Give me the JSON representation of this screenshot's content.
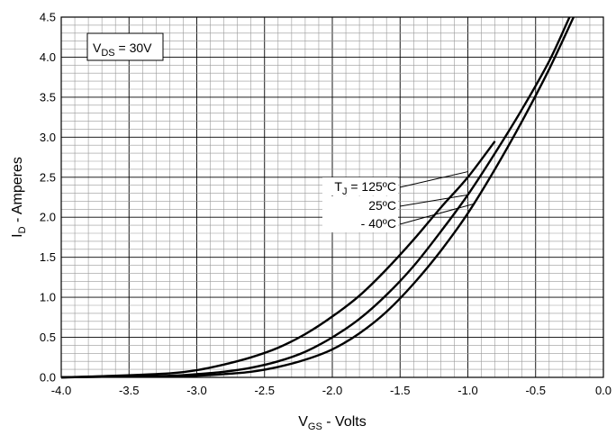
{
  "chart_data": {
    "type": "line",
    "title": "",
    "xlabel": {
      "main": "V",
      "sub": "GS",
      "rest": " - Volts"
    },
    "ylabel": {
      "main": "I",
      "sub": "D",
      "rest": " - Amperes"
    },
    "xlim": [
      -4.0,
      0.0
    ],
    "ylim": [
      0.0,
      4.5
    ],
    "grid": true,
    "x_ticks": [
      "-4.0",
      "-3.5",
      "-3.0",
      "-2.5",
      "-2.0",
      "-1.5",
      "-1.0",
      "-0.5",
      "0.0"
    ],
    "y_ticks": [
      "0.0",
      "0.5",
      "1.0",
      "1.5",
      "2.0",
      "2.5",
      "3.0",
      "3.5",
      "4.0",
      "4.5"
    ],
    "condition_box": {
      "main": "V",
      "sub": "DS",
      "rest": " = 30V"
    },
    "series": [
      {
        "name": "T_J = 125ºC",
        "label": {
          "main": "T",
          "sub": "J",
          "rest": " = 125ºC"
        },
        "x": [
          -4.0,
          -3.6,
          -3.2,
          -3.0,
          -2.8,
          -2.6,
          -2.4,
          -2.2,
          -2.0,
          -1.8,
          -1.6,
          -1.4,
          -1.2,
          -1.0,
          -0.8
        ],
        "y": [
          0.0,
          0.02,
          0.05,
          0.09,
          0.16,
          0.25,
          0.37,
          0.54,
          0.76,
          1.02,
          1.35,
          1.72,
          2.12,
          2.5,
          2.95
        ]
      },
      {
        "name": "25ºC",
        "label": {
          "main": "25ºC",
          "sub": "",
          "rest": ""
        },
        "x": [
          -4.0,
          -3.6,
          -3.2,
          -3.0,
          -2.8,
          -2.6,
          -2.4,
          -2.2,
          -2.0,
          -1.8,
          -1.6,
          -1.4,
          -1.2,
          -1.0,
          -0.8,
          -0.6,
          -0.4,
          -0.25
        ],
        "y": [
          0.0,
          0.01,
          0.02,
          0.04,
          0.07,
          0.12,
          0.2,
          0.32,
          0.5,
          0.73,
          1.03,
          1.39,
          1.82,
          2.28,
          2.8,
          3.35,
          3.95,
          4.5
        ]
      },
      {
        "name": "- 40ºC",
        "label": {
          "main": "- 40ºC",
          "sub": "",
          "rest": ""
        },
        "x": [
          -4.0,
          -3.6,
          -3.2,
          -3.0,
          -2.8,
          -2.6,
          -2.4,
          -2.2,
          -2.0,
          -1.8,
          -1.6,
          -1.4,
          -1.2,
          -1.0,
          -0.8,
          -0.6,
          -0.4,
          -0.22
        ],
        "y": [
          0.0,
          0.01,
          0.01,
          0.02,
          0.04,
          0.07,
          0.13,
          0.22,
          0.35,
          0.55,
          0.82,
          1.17,
          1.58,
          2.05,
          2.6,
          3.2,
          3.85,
          4.5
        ]
      }
    ]
  }
}
